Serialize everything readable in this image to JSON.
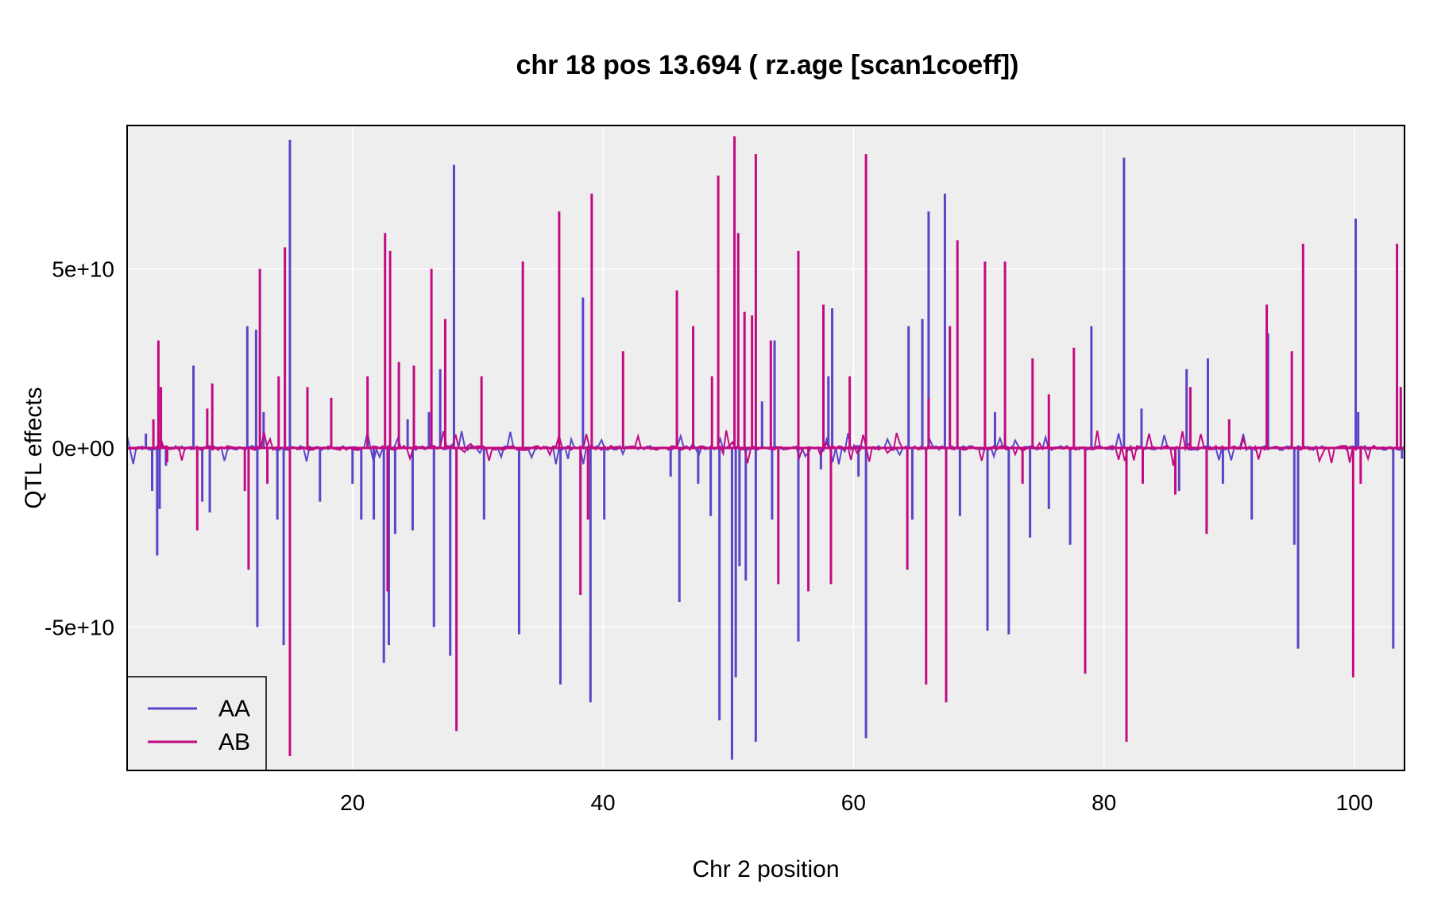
{
  "chart_data": {
    "type": "line",
    "title": "chr 18 pos 13.694 ( rz.age  [scan1coeff])",
    "xlabel": "Chr 2 position",
    "ylabel": "QTL effects",
    "xlim": [
      2,
      104
    ],
    "ylim": [
      -90000000000,
      90000000000
    ],
    "x_ticks": [
      20,
      40,
      60,
      80,
      100
    ],
    "x_tick_labels": [
      "20",
      "40",
      "60",
      "80",
      "100"
    ],
    "y_ticks": [
      50000000000,
      0,
      -50000000000
    ],
    "y_tick_labels": [
      "5e+10",
      "0e+00",
      "-5e+10"
    ],
    "grid": true,
    "legend_position": "bottom-left",
    "background": "#eeeeee",
    "series": [
      {
        "name": "AA",
        "color": "#5b44c9",
        "points": [
          [
            3.5,
            4000000000
          ],
          [
            4.0,
            -12000000000
          ],
          [
            4.4,
            -30000000000
          ],
          [
            4.6,
            -17000000000
          ],
          [
            5.1,
            -5000000000
          ],
          [
            7.3,
            23000000000
          ],
          [
            8.0,
            -15000000000
          ],
          [
            8.6,
            -18000000000
          ],
          [
            11.6,
            34000000000
          ],
          [
            12.3,
            33000000000
          ],
          [
            12.4,
            -50000000000
          ],
          [
            12.9,
            10000000000
          ],
          [
            14.0,
            -20000000000
          ],
          [
            14.5,
            -55000000000
          ],
          [
            15.0,
            86000000000
          ],
          [
            17.4,
            -15000000000
          ],
          [
            20.0,
            -10000000000
          ],
          [
            20.7,
            -20000000000
          ],
          [
            21.7,
            -20000000000
          ],
          [
            22.5,
            -60000000000
          ],
          [
            22.9,
            -55000000000
          ],
          [
            23.4,
            -24000000000
          ],
          [
            24.4,
            8000000000
          ],
          [
            24.8,
            -23000000000
          ],
          [
            26.1,
            10000000000
          ],
          [
            26.5,
            -50000000000
          ],
          [
            27.0,
            22000000000
          ],
          [
            27.8,
            -58000000000
          ],
          [
            28.1,
            79000000000
          ],
          [
            30.5,
            -20000000000
          ],
          [
            33.3,
            -52000000000
          ],
          [
            36.6,
            -66000000000
          ],
          [
            38.4,
            42000000000
          ],
          [
            39.0,
            -71000000000
          ],
          [
            40.1,
            -20000000000
          ],
          [
            45.4,
            -8000000000
          ],
          [
            46.1,
            -43000000000
          ],
          [
            47.6,
            -10000000000
          ],
          [
            48.6,
            -19000000000
          ],
          [
            49.3,
            -76000000000
          ],
          [
            50.3,
            -87000000000
          ],
          [
            50.6,
            -64000000000
          ],
          [
            50.9,
            -33000000000
          ],
          [
            51.4,
            -37000000000
          ],
          [
            52.2,
            -82000000000
          ],
          [
            52.7,
            13000000000
          ],
          [
            53.5,
            -20000000000
          ],
          [
            53.7,
            30000000000
          ],
          [
            55.6,
            -54000000000
          ],
          [
            57.4,
            -6000000000
          ],
          [
            58.0,
            20000000000
          ],
          [
            58.3,
            39000000000
          ],
          [
            60.4,
            -8000000000
          ],
          [
            61.0,
            -81000000000
          ],
          [
            64.4,
            34000000000
          ],
          [
            64.7,
            -20000000000
          ],
          [
            65.5,
            36000000000
          ],
          [
            66.0,
            66000000000
          ],
          [
            67.3,
            71000000000
          ],
          [
            68.5,
            -19000000000
          ],
          [
            70.7,
            -51000000000
          ],
          [
            71.3,
            10000000000
          ],
          [
            72.4,
            -52000000000
          ],
          [
            74.1,
            -25000000000
          ],
          [
            75.6,
            -17000000000
          ],
          [
            77.3,
            -27000000000
          ],
          [
            79.0,
            34000000000
          ],
          [
            81.6,
            81000000000
          ],
          [
            83.0,
            11000000000
          ],
          [
            86.0,
            -12000000000
          ],
          [
            86.6,
            22000000000
          ],
          [
            88.3,
            25000000000
          ],
          [
            89.5,
            -10000000000
          ],
          [
            91.8,
            -20000000000
          ],
          [
            93.1,
            32000000000
          ],
          [
            95.2,
            -27000000000
          ],
          [
            95.5,
            -56000000000
          ],
          [
            100.1,
            64000000000
          ],
          [
            100.3,
            10000000000
          ],
          [
            103.1,
            -56000000000
          ],
          [
            103.8,
            -3000000000
          ]
        ]
      },
      {
        "name": "AB",
        "color": "#c20a82",
        "points": [
          [
            4.1,
            8000000000
          ],
          [
            4.5,
            30000000000
          ],
          [
            4.7,
            17000000000
          ],
          [
            5.2,
            -4000000000
          ],
          [
            7.6,
            -23000000000
          ],
          [
            8.4,
            11000000000
          ],
          [
            8.8,
            18000000000
          ],
          [
            11.4,
            -12000000000
          ],
          [
            11.7,
            -34000000000
          ],
          [
            12.6,
            50000000000
          ],
          [
            13.2,
            -10000000000
          ],
          [
            14.1,
            20000000000
          ],
          [
            14.6,
            56000000000
          ],
          [
            15.0,
            -86000000000
          ],
          [
            16.4,
            17000000000
          ],
          [
            18.3,
            14000000000
          ],
          [
            21.2,
            20000000000
          ],
          [
            22.6,
            60000000000
          ],
          [
            22.8,
            -40000000000
          ],
          [
            23.0,
            55000000000
          ],
          [
            23.7,
            24000000000
          ],
          [
            24.9,
            23000000000
          ],
          [
            26.3,
            50000000000
          ],
          [
            27.4,
            36000000000
          ],
          [
            28.3,
            -79000000000
          ],
          [
            30.3,
            20000000000
          ],
          [
            33.6,
            52000000000
          ],
          [
            36.5,
            66000000000
          ],
          [
            38.2,
            -41000000000
          ],
          [
            38.8,
            -20000000000
          ],
          [
            39.1,
            71000000000
          ],
          [
            41.6,
            27000000000
          ],
          [
            45.9,
            44000000000
          ],
          [
            47.2,
            34000000000
          ],
          [
            48.7,
            20000000000
          ],
          [
            49.2,
            76000000000
          ],
          [
            50.5,
            87000000000
          ],
          [
            50.8,
            60000000000
          ],
          [
            51.3,
            38000000000
          ],
          [
            51.9,
            37000000000
          ],
          [
            52.2,
            82000000000
          ],
          [
            53.4,
            30000000000
          ],
          [
            54.0,
            -38000000000
          ],
          [
            55.6,
            55000000000
          ],
          [
            56.4,
            -40000000000
          ],
          [
            57.6,
            40000000000
          ],
          [
            58.2,
            -38000000000
          ],
          [
            59.7,
            20000000000
          ],
          [
            61.0,
            82000000000
          ],
          [
            64.3,
            -34000000000
          ],
          [
            65.8,
            -66000000000
          ],
          [
            66.0,
            14000000000
          ],
          [
            67.4,
            -71000000000
          ],
          [
            67.7,
            34000000000
          ],
          [
            68.3,
            58000000000
          ],
          [
            70.5,
            52000000000
          ],
          [
            72.1,
            52000000000
          ],
          [
            73.5,
            -10000000000
          ],
          [
            74.3,
            25000000000
          ],
          [
            75.6,
            15000000000
          ],
          [
            77.6,
            28000000000
          ],
          [
            78.5,
            -63000000000
          ],
          [
            81.8,
            -82000000000
          ],
          [
            83.1,
            -10000000000
          ],
          [
            85.7,
            -13000000000
          ],
          [
            86.9,
            17000000000
          ],
          [
            88.2,
            -24000000000
          ],
          [
            90.0,
            8000000000
          ],
          [
            93.0,
            40000000000
          ],
          [
            95.0,
            27000000000
          ],
          [
            95.9,
            57000000000
          ],
          [
            99.9,
            -64000000000
          ],
          [
            100.5,
            -10000000000
          ],
          [
            103.4,
            57000000000
          ],
          [
            103.7,
            17000000000
          ]
        ]
      }
    ]
  }
}
